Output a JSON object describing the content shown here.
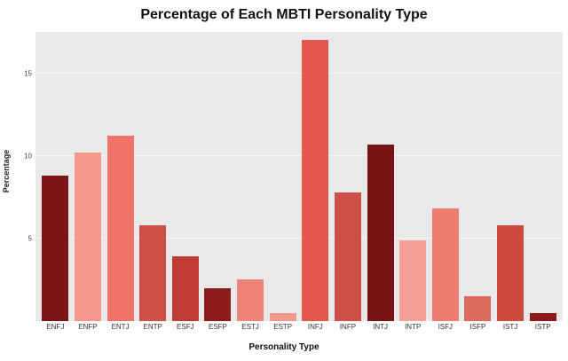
{
  "chart_data": {
    "type": "bar",
    "title": "Percentage of Each MBTI Personality Type",
    "xlabel": "Personality Type",
    "ylabel": "Percentage",
    "categories": [
      "ENFJ",
      "ENFP",
      "ENTJ",
      "ENTP",
      "ESFJ",
      "ESFP",
      "ESTJ",
      "ESTP",
      "INFJ",
      "INFP",
      "INTJ",
      "INTP",
      "ISFJ",
      "ISFP",
      "ISTJ",
      "ISTP"
    ],
    "values": [
      8.8,
      10.2,
      11.2,
      5.8,
      3.9,
      2.0,
      2.5,
      0.5,
      17.0,
      7.8,
      10.7,
      4.9,
      6.8,
      1.5,
      5.8,
      0.5
    ],
    "bar_colors": [
      "#7e1416",
      "#f5978b",
      "#ef7368",
      "#cd5149",
      "#bf3b33",
      "#8c1c1c",
      "#ee8377",
      "#f09a8e",
      "#e4574c",
      "#cd4f47",
      "#771215",
      "#f5a096",
      "#ef7d6f",
      "#dd6a5e",
      "#cf4a3e",
      "#8a1a1a"
    ],
    "yticks": [
      5,
      10,
      15
    ],
    "ylim": [
      0,
      17.5
    ],
    "grid": true,
    "legend_position": "none",
    "plot_background": "#e9e9e9"
  }
}
